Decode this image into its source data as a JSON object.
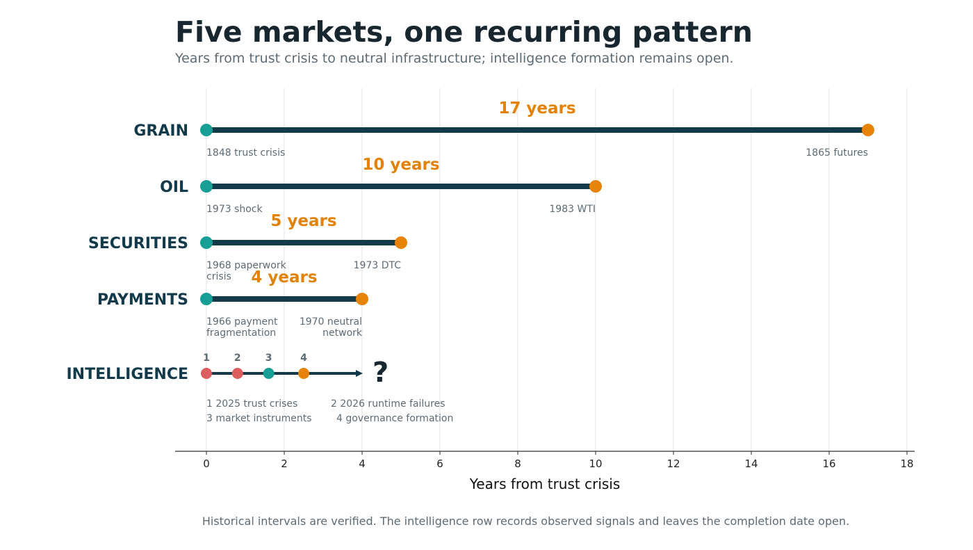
{
  "header": {
    "title": "Five markets, one recurring pattern",
    "subtitle": "Years from trust crisis to neutral infrastructure; intelligence formation remains open."
  },
  "footer": "Historical intervals are verified. The intelligence row records observed signals and leaves the completion date open.",
  "colors": {
    "bar": "#123a4a",
    "start": "#179e95",
    "end": "#e8830a",
    "signal_red": "#dd5e5e",
    "label_accent": "#e28207",
    "grid": "#e6e6e6"
  },
  "chart_data": {
    "type": "timeline",
    "xlabel": "Years from trust crisis",
    "xlim": [
      -0.8,
      18.2
    ],
    "xticks": [
      0,
      2,
      4,
      6,
      8,
      10,
      12,
      14,
      16,
      18
    ],
    "grid": "vertical",
    "rows": [
      {
        "market": "GRAIN",
        "start": 0,
        "end": 17,
        "span_label": "17 years",
        "start_label": [
          "1848 trust crisis"
        ],
        "end_label": [
          "1865 futures"
        ]
      },
      {
        "market": "OIL",
        "start": 0,
        "end": 10,
        "span_label": "10 years",
        "start_label": [
          "1973 shock"
        ],
        "end_label": [
          "1983 WTI"
        ]
      },
      {
        "market": "SECURITIES",
        "start": 0,
        "end": 5,
        "span_label": "5 years",
        "start_label": [
          "1968 paperwork",
          "crisis"
        ],
        "end_label": [
          "1973 DTC"
        ]
      },
      {
        "market": "PAYMENTS",
        "start": 0,
        "end": 4,
        "span_label": "4 years",
        "start_label": [
          "1966 payment",
          "fragmentation"
        ],
        "end_label": [
          "1970 neutral",
          "network"
        ]
      }
    ],
    "open_row": {
      "market": "INTELLIGENCE",
      "arrow_end": 4,
      "marker": "?",
      "signals": [
        {
          "num": "1",
          "x": 0,
          "color": "red",
          "label": "2025 trust crises"
        },
        {
          "num": "2",
          "x": 0.8,
          "color": "red",
          "label": "2026 runtime failures"
        },
        {
          "num": "3",
          "x": 1.6,
          "color": "teal",
          "label": "market instruments"
        },
        {
          "num": "4",
          "x": 2.5,
          "color": "orange",
          "label": "governance formation"
        }
      ]
    }
  }
}
